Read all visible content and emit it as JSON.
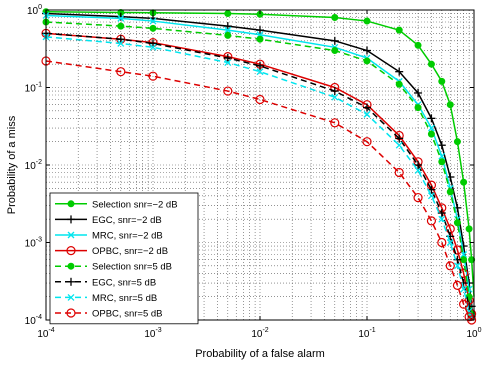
{
  "chart_data": {
    "type": "line",
    "xlabel": "Probability of a false alarm",
    "ylabel": "Probability of a miss",
    "xscale": "log",
    "yscale": "log",
    "xlim": [
      0.0001,
      1
    ],
    "ylim": [
      0.0001,
      1
    ],
    "grid": true,
    "legend_position": "bottom-left",
    "x_ticks": [
      {
        "value": 0.0001,
        "base": "10",
        "exp": "-4"
      },
      {
        "value": 0.001,
        "base": "10",
        "exp": "-3"
      },
      {
        "value": 0.01,
        "base": "10",
        "exp": "-2"
      },
      {
        "value": 0.1,
        "base": "10",
        "exp": "-1"
      },
      {
        "value": 1,
        "base": "10",
        "exp": "0"
      }
    ],
    "y_ticks": [
      {
        "value": 0.0001,
        "base": "10",
        "exp": "-4"
      },
      {
        "value": 0.001,
        "base": "10",
        "exp": "-3"
      },
      {
        "value": 0.01,
        "base": "10",
        "exp": "-2"
      },
      {
        "value": 0.1,
        "base": "10",
        "exp": "-1"
      },
      {
        "value": 1,
        "base": "10",
        "exp": "0"
      }
    ],
    "series": [
      {
        "name": "Selection snr=−2 dB",
        "color": "#00cc00",
        "dash": "solid",
        "marker": "dot",
        "x": [
          0.0001,
          0.0005,
          0.001,
          0.005,
          0.01,
          0.05,
          0.1,
          0.2,
          0.3,
          0.4,
          0.5,
          0.6,
          0.7,
          0.8,
          0.9,
          0.95,
          1
        ],
        "y": [
          0.95,
          0.93,
          0.92,
          0.9,
          0.88,
          0.8,
          0.72,
          0.55,
          0.35,
          0.2,
          0.12,
          0.06,
          0.02,
          0.006,
          0.0015,
          0.0006,
          0.0002
        ]
      },
      {
        "name": "EGC, snr=−2 dB",
        "color": "#000000",
        "dash": "solid",
        "marker": "plus",
        "x": [
          0.0001,
          0.0005,
          0.001,
          0.005,
          0.01,
          0.05,
          0.1,
          0.2,
          0.3,
          0.4,
          0.5,
          0.6,
          0.7,
          0.8,
          0.9,
          0.95,
          1
        ],
        "y": [
          0.9,
          0.82,
          0.78,
          0.62,
          0.55,
          0.4,
          0.3,
          0.16,
          0.085,
          0.04,
          0.018,
          0.007,
          0.0028,
          0.0009,
          0.0003,
          0.00015,
          0.0001
        ]
      },
      {
        "name": "MRC, snr=−2 dB",
        "color": "#00e5ee",
        "dash": "solid",
        "marker": "x",
        "x": [
          0.0001,
          0.0005,
          0.001,
          0.005,
          0.01,
          0.05,
          0.1,
          0.2,
          0.3,
          0.4,
          0.5,
          0.6,
          0.7,
          0.8,
          0.9,
          0.95,
          1
        ],
        "y": [
          0.85,
          0.78,
          0.72,
          0.55,
          0.48,
          0.33,
          0.24,
          0.12,
          0.06,
          0.03,
          0.013,
          0.005,
          0.002,
          0.0007,
          0.00025,
          0.00012,
          0.0001
        ]
      },
      {
        "name": "OPBC, snr=−2 dB",
        "color": "#dd0000",
        "dash": "solid",
        "marker": "circle",
        "x": [
          0.0001,
          0.0005,
          0.001,
          0.005,
          0.01,
          0.05,
          0.1,
          0.2,
          0.3,
          0.4,
          0.5,
          0.6,
          0.7,
          0.8,
          0.9,
          0.95,
          1
        ],
        "y": [
          0.5,
          0.42,
          0.38,
          0.25,
          0.2,
          0.1,
          0.06,
          0.024,
          0.011,
          0.0055,
          0.0028,
          0.0015,
          0.0008,
          0.0004,
          0.00018,
          0.00012,
          0.0001
        ]
      },
      {
        "name": "Selection snr=5 dB",
        "color": "#00cc00",
        "dash": "dashed",
        "marker": "dot",
        "x": [
          0.0001,
          0.0005,
          0.001,
          0.005,
          0.01,
          0.05,
          0.1,
          0.2,
          0.3,
          0.4,
          0.5,
          0.6,
          0.7,
          0.8,
          0.9,
          0.95,
          1
        ],
        "y": [
          0.7,
          0.62,
          0.58,
          0.47,
          0.42,
          0.3,
          0.22,
          0.11,
          0.055,
          0.025,
          0.011,
          0.0045,
          0.0018,
          0.0006,
          0.0002,
          0.00012,
          0.0001
        ]
      },
      {
        "name": "EGC, snr=5 dB",
        "color": "#000000",
        "dash": "dashed",
        "marker": "plus",
        "x": [
          0.0001,
          0.0005,
          0.001,
          0.005,
          0.01,
          0.05,
          0.1,
          0.2,
          0.3,
          0.4,
          0.5,
          0.6,
          0.7,
          0.8,
          0.9,
          0.95,
          1
        ],
        "y": [
          0.5,
          0.42,
          0.37,
          0.24,
          0.19,
          0.09,
          0.055,
          0.022,
          0.01,
          0.0048,
          0.0024,
          0.0012,
          0.0006,
          0.0003,
          0.00015,
          0.00011,
          0.0001
        ]
      },
      {
        "name": "MRC, snr=5 dB",
        "color": "#00e5ee",
        "dash": "dashed",
        "marker": "x",
        "x": [
          0.0001,
          0.0005,
          0.001,
          0.005,
          0.01,
          0.05,
          0.1,
          0.2,
          0.3,
          0.4,
          0.5,
          0.6,
          0.7,
          0.8,
          0.9,
          0.95,
          1
        ],
        "y": [
          0.45,
          0.37,
          0.33,
          0.21,
          0.16,
          0.075,
          0.045,
          0.018,
          0.0085,
          0.004,
          0.002,
          0.001,
          0.0005,
          0.00025,
          0.00013,
          0.00011,
          0.0001
        ]
      },
      {
        "name": "OPBC, snr=5 dB",
        "color": "#dd0000",
        "dash": "dashed",
        "marker": "circle",
        "x": [
          0.0001,
          0.0005,
          0.001,
          0.005,
          0.01,
          0.05,
          0.1,
          0.2,
          0.3,
          0.4,
          0.5,
          0.6,
          0.7,
          0.8,
          0.9,
          0.95,
          1
        ],
        "y": [
          0.22,
          0.16,
          0.14,
          0.09,
          0.07,
          0.035,
          0.02,
          0.008,
          0.0038,
          0.0019,
          0.001,
          0.0005,
          0.00028,
          0.00016,
          0.00011,
          0.0001,
          0.0001
        ]
      }
    ]
  }
}
